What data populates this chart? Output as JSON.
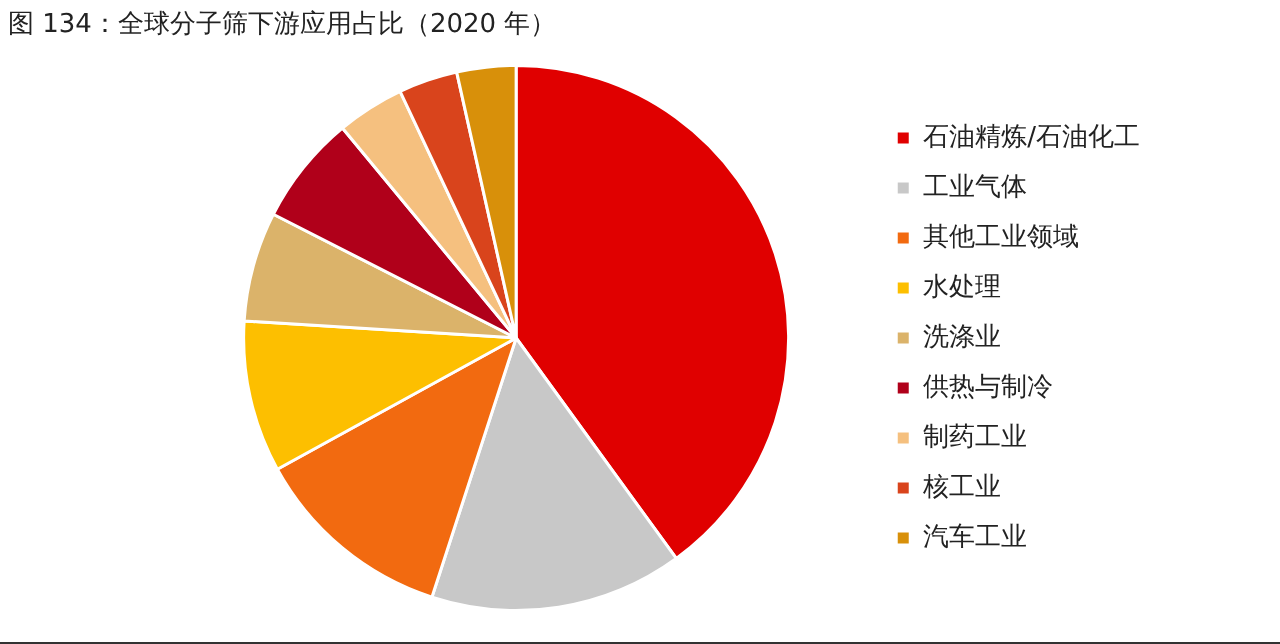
{
  "chart_data": {
    "type": "pie",
    "title": "图 134：全球分子筛下游应用占比（2020 年）",
    "categories": [
      "石油精炼/石油化工",
      "工业气体",
      "其他工业领域",
      "水处理",
      "洗涤业",
      "供热与制冷",
      "制药工业",
      "核工业",
      "汽车工业"
    ],
    "values": [
      40,
      15,
      12,
      9,
      6.5,
      6.5,
      4,
      3.5,
      3.5
    ],
    "colors": [
      "#e00000",
      "#c8c8c8",
      "#f26a10",
      "#fdbf00",
      "#dbb36a",
      "#b0001a",
      "#f5c07f",
      "#d9441c",
      "#d8900a"
    ],
    "legend": "right"
  }
}
